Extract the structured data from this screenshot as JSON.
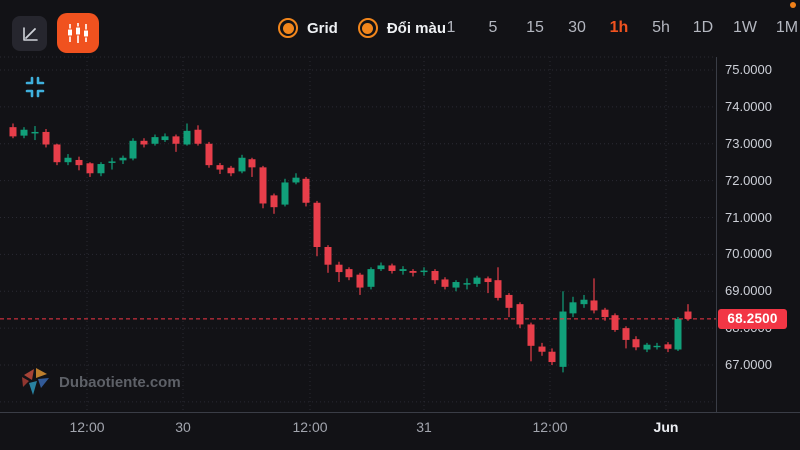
{
  "toolbar": {
    "line_chart_button": {
      "icon": "line-chart-icon",
      "active": false
    },
    "candle_chart_button": {
      "icon": "candlestick-icon",
      "active": true
    },
    "toggles": [
      {
        "label": "Grid",
        "checked": true
      },
      {
        "label": "Đổi màu",
        "checked": true
      }
    ],
    "timeframes": [
      "1",
      "5",
      "15",
      "30",
      "1h",
      "5h",
      "1D",
      "1W",
      "1M"
    ],
    "active_timeframe": "1h"
  },
  "watermark": {
    "text": "Dubaotiente.com",
    "logo": "pinwheel-logo-icon"
  },
  "colors": {
    "background": "#121216",
    "up": "#11a07a",
    "down": "#e73e4a",
    "accent_orange": "#f0521f",
    "price_label_red": "#f23645",
    "grid": "#2a2a33",
    "axis_line": "#3a3d46",
    "crosshair_icon": "#3fb0dd",
    "text_primary": "#eef0f3",
    "text_secondary": "#a2a5ae"
  },
  "chart_data": {
    "type": "candlestick",
    "timeframe": "1h",
    "title": "",
    "grid": true,
    "ylim": [
      66.1,
      75.4
    ],
    "last_price": "68.2500",
    "last_price_value": 68.25,
    "y_ticks": [
      {
        "price": 75,
        "label": "75.0000"
      },
      {
        "price": 74,
        "label": "74.0000"
      },
      {
        "price": 73,
        "label": "73.0000"
      },
      {
        "price": 72,
        "label": "72.0000"
      },
      {
        "price": 71,
        "label": "71.0000"
      },
      {
        "price": 70,
        "label": "70.0000"
      },
      {
        "price": 69,
        "label": "69.0000"
      },
      {
        "price": 68,
        "label": "68.0000"
      },
      {
        "price": 67,
        "label": "67.0000"
      }
    ],
    "grid_prices": [
      75,
      74,
      73,
      72,
      71,
      70,
      69,
      68,
      67,
      66
    ],
    "x_ticks": [
      {
        "x": 87,
        "label": "12:00",
        "major": false
      },
      {
        "x": 183,
        "label": "30",
        "major": false
      },
      {
        "x": 310,
        "label": "12:00",
        "major": false
      },
      {
        "x": 424,
        "label": "31",
        "major": false
      },
      {
        "x": 550,
        "label": "12:00",
        "major": false
      },
      {
        "x": 666,
        "label": "Jun",
        "major": true
      }
    ],
    "candles_format": "[x_px, open, high, low, close]",
    "candles": [
      [
        13,
        73.45,
        73.55,
        73.15,
        73.2
      ],
      [
        24,
        73.22,
        73.45,
        73.15,
        73.38
      ],
      [
        35,
        73.28,
        73.48,
        73.1,
        73.32
      ],
      [
        46,
        73.32,
        73.4,
        72.9,
        72.98
      ],
      [
        57,
        72.98,
        73.0,
        72.42,
        72.5
      ],
      [
        68,
        72.5,
        72.72,
        72.42,
        72.62
      ],
      [
        79,
        72.56,
        72.65,
        72.28,
        72.42
      ],
      [
        90,
        72.47,
        72.5,
        72.1,
        72.2
      ],
      [
        101,
        72.2,
        72.5,
        72.12,
        72.45
      ],
      [
        112,
        72.48,
        72.62,
        72.3,
        72.52
      ],
      [
        123,
        72.55,
        72.68,
        72.45,
        72.62
      ],
      [
        133,
        72.6,
        73.15,
        72.55,
        73.08
      ],
      [
        144,
        73.08,
        73.15,
        72.9,
        72.98
      ],
      [
        155,
        73.0,
        73.25,
        72.95,
        73.18
      ],
      [
        165,
        73.1,
        73.28,
        73.05,
        73.2
      ],
      [
        176,
        73.2,
        73.25,
        72.78,
        73.0
      ],
      [
        187,
        72.98,
        73.55,
        72.95,
        73.35
      ],
      [
        198,
        73.38,
        73.5,
        72.95,
        73.0
      ],
      [
        209,
        73.0,
        73.05,
        72.35,
        72.42
      ],
      [
        220,
        72.42,
        72.48,
        72.18,
        72.3
      ],
      [
        231,
        72.35,
        72.4,
        72.12,
        72.2
      ],
      [
        242,
        72.25,
        72.7,
        72.2,
        72.62
      ],
      [
        252,
        72.58,
        72.62,
        72.1,
        72.36
      ],
      [
        263,
        72.36,
        72.4,
        71.25,
        71.38
      ],
      [
        274,
        71.6,
        71.65,
        71.1,
        71.28
      ],
      [
        285,
        71.35,
        72.05,
        71.3,
        71.95
      ],
      [
        296,
        71.95,
        72.2,
        71.9,
        72.08
      ],
      [
        306,
        72.05,
        72.1,
        71.3,
        71.4
      ],
      [
        317,
        71.4,
        71.45,
        69.95,
        70.2
      ],
      [
        328,
        70.2,
        70.25,
        69.5,
        69.72
      ],
      [
        339,
        69.72,
        69.8,
        69.25,
        69.52
      ],
      [
        349,
        69.6,
        69.65,
        69.3,
        69.38
      ],
      [
        360,
        69.45,
        69.5,
        68.9,
        69.1
      ],
      [
        371,
        69.12,
        69.65,
        69.05,
        69.6
      ],
      [
        381,
        69.6,
        69.78,
        69.55,
        69.7
      ],
      [
        392,
        69.7,
        69.75,
        69.48,
        69.55
      ],
      [
        403,
        69.55,
        69.68,
        69.45,
        69.6
      ],
      [
        413,
        69.55,
        69.6,
        69.4,
        69.5
      ],
      [
        424,
        69.52,
        69.65,
        69.42,
        69.56
      ],
      [
        435,
        69.55,
        69.6,
        69.2,
        69.3
      ],
      [
        445,
        69.32,
        69.38,
        69.05,
        69.12
      ],
      [
        456,
        69.1,
        69.3,
        69.0,
        69.25
      ],
      [
        467,
        69.18,
        69.35,
        69.05,
        69.22
      ],
      [
        477,
        69.2,
        69.42,
        69.12,
        69.37
      ],
      [
        488,
        69.35,
        69.4,
        68.95,
        69.25
      ],
      [
        498,
        69.3,
        69.65,
        68.75,
        68.82
      ],
      [
        509,
        68.9,
        68.95,
        68.3,
        68.55
      ],
      [
        520,
        68.65,
        68.7,
        68.0,
        68.1
      ],
      [
        531,
        68.1,
        68.15,
        67.1,
        67.52
      ],
      [
        542,
        67.5,
        67.6,
        67.25,
        67.36
      ],
      [
        552,
        67.36,
        67.45,
        67.0,
        67.08
      ],
      [
        563,
        66.95,
        69.0,
        66.8,
        68.45
      ],
      [
        573,
        68.4,
        68.85,
        68.3,
        68.7
      ],
      [
        584,
        68.65,
        68.9,
        68.55,
        68.77
      ],
      [
        594,
        68.75,
        69.35,
        68.4,
        68.48
      ],
      [
        605,
        68.5,
        68.55,
        68.2,
        68.3
      ],
      [
        615,
        68.35,
        68.4,
        67.9,
        67.95
      ],
      [
        626,
        68.0,
        68.05,
        67.45,
        67.68
      ],
      [
        636,
        67.7,
        67.78,
        67.4,
        67.48
      ],
      [
        647,
        67.42,
        67.6,
        67.35,
        67.55
      ],
      [
        657,
        67.5,
        67.6,
        67.42,
        67.52
      ],
      [
        668,
        67.56,
        67.62,
        67.35,
        67.44
      ],
      [
        678,
        67.42,
        68.3,
        67.38,
        68.25
      ],
      [
        688,
        68.45,
        68.65,
        68.2,
        68.25
      ]
    ]
  }
}
